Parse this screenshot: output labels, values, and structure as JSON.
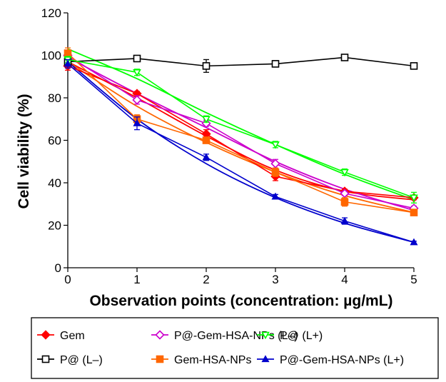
{
  "chart_data": {
    "type": "line",
    "xlabel": "Observation points (concentration: µg/mL)",
    "ylabel": "Cell viability (%)",
    "xlim": [
      0,
      5
    ],
    "ylim": [
      0,
      120
    ],
    "xticks": [
      "0",
      "1",
      "2",
      "3",
      "4",
      "5"
    ],
    "yticks": [
      "0",
      "20",
      "40",
      "60",
      "80",
      "100",
      "120"
    ],
    "x": [
      0,
      1,
      2,
      3,
      4,
      5
    ],
    "grid": false,
    "legend_position": "bottom",
    "series": [
      {
        "name": "Gem",
        "color": "#ff0000",
        "marker": "diamond-filled",
        "values": [
          95,
          82,
          63,
          43,
          36,
          33
        ],
        "errors": [
          2,
          1,
          2,
          2,
          1,
          1
        ],
        "trend": [
          97,
          80,
          62,
          46,
          36,
          32
        ]
      },
      {
        "name": "P@ (L–)",
        "color": "#000000",
        "marker": "square-open",
        "values": [
          97,
          98.5,
          95,
          96,
          99,
          95
        ],
        "errors": [
          1.5,
          1,
          3,
          1.5,
          1,
          1
        ],
        "trend": null
      },
      {
        "name": "P@-Gem-HSA-NPs (L–)",
        "color": "#cc00cc",
        "marker": "diamond-open",
        "values": [
          100,
          79,
          68,
          49,
          35,
          28
        ],
        "errors": [
          2,
          2,
          1.5,
          2,
          1,
          1
        ],
        "trend": [
          99,
          82,
          66,
          50,
          37,
          27
        ]
      },
      {
        "name": "Gem-HSA-NPs",
        "color": "#ff6600",
        "marker": "square-filled",
        "values": [
          101,
          70,
          60,
          45,
          31,
          26
        ],
        "errors": [
          2.5,
          2,
          1.5,
          2,
          2,
          1
        ],
        "trend": [
          97,
          76,
          59,
          45,
          34,
          26
        ]
      },
      {
        "name": "P@ (L+)",
        "color": "#00ff00",
        "marker": "triangle-down-open",
        "values": [
          98,
          92,
          70,
          58,
          45,
          33
        ],
        "errors": [
          1.5,
          1.5,
          1.5,
          1.5,
          1.5,
          2.5
        ],
        "trend": [
          103,
          89,
          73,
          58,
          44,
          32
        ]
      },
      {
        "name": "P@-Gem-HSA-NPs (L+)",
        "color": "#0000cc",
        "marker": "triangle-filled",
        "values": [
          96,
          68,
          52,
          33.5,
          22,
          12
        ],
        "errors": [
          2,
          3,
          1.5,
          1,
          1.5,
          0.5
        ],
        "trend": [
          97,
          70,
          49,
          33,
          21,
          12
        ]
      }
    ]
  }
}
